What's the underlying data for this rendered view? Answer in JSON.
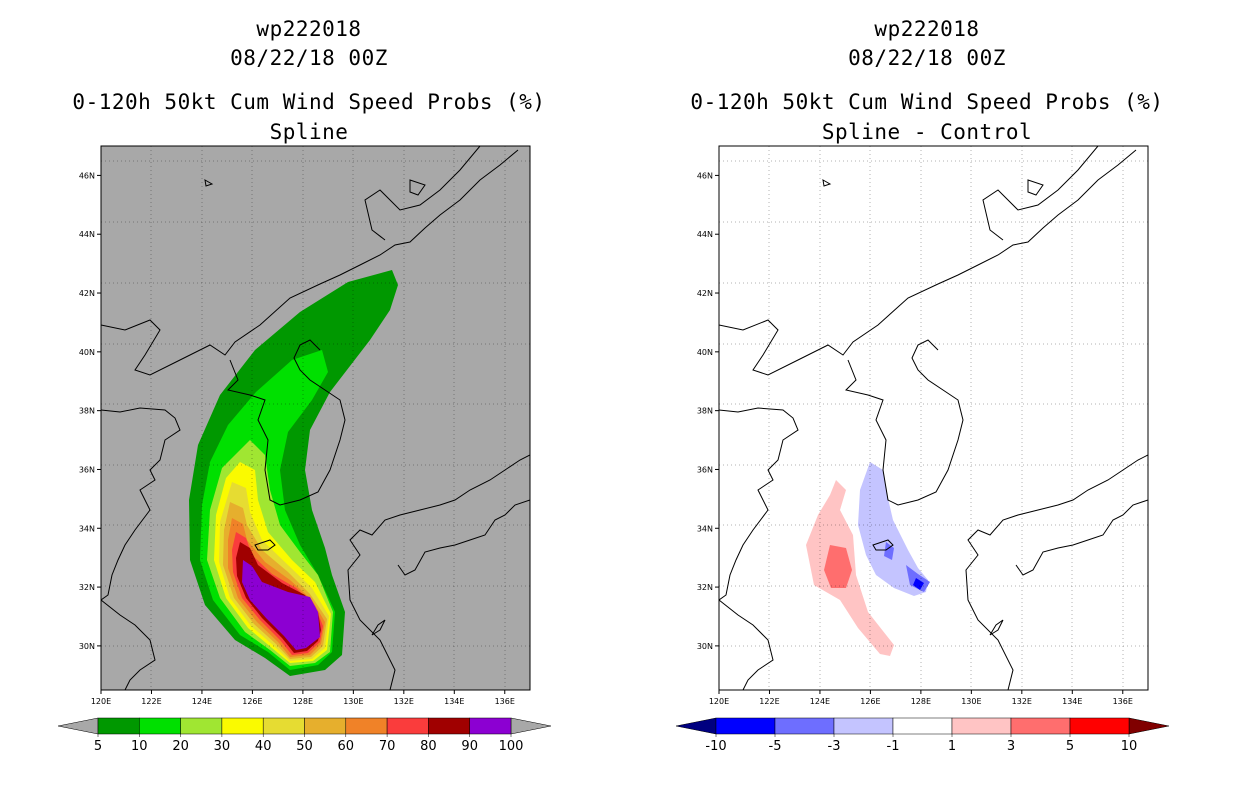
{
  "panels": [
    {
      "id": "left",
      "storm_id": "wp222018",
      "datetime": "08/22/18 00Z",
      "product": "0-120h 50kt Cum Wind Speed Probs (%)",
      "subtitle": "Spline",
      "background_color": "#a8a8a8",
      "colorbar": {
        "labels": [
          "5",
          "10",
          "20",
          "30",
          "40",
          "50",
          "60",
          "70",
          "80",
          "90",
          "100"
        ],
        "colors": [
          "#009800",
          "#00e000",
          "#a0e632",
          "#fafa00",
          "#e6dc32",
          "#e6af2d",
          "#f08228",
          "#fa3c3c",
          "#a00000",
          "#8c00d2"
        ],
        "end_arrow_colors": [
          "#a8a8a8",
          "#a8a8a8"
        ]
      }
    },
    {
      "id": "right",
      "storm_id": "wp222018",
      "datetime": "08/22/18 00Z",
      "product": "0-120h 50kt Cum Wind Speed Probs (%)",
      "subtitle": "Spline - Control",
      "background_color": "#ffffff",
      "colorbar": {
        "labels": [
          "-10",
          "-5",
          "-3",
          "-1",
          "1",
          "3",
          "5",
          "10"
        ],
        "colors": [
          "#0000ff",
          "#6e6eff",
          "#c4c4ff",
          "#ffffff",
          "#ffc4c4",
          "#ff6e6e",
          "#ff0000"
        ],
        "end_arrow_colors": [
          "#000080",
          "#800000"
        ]
      }
    }
  ],
  "map": {
    "lon_range": [
      120,
      137
    ],
    "lat_range": [
      28.5,
      47
    ],
    "lon_ticks": [
      "120E",
      "122E",
      "124E",
      "126E",
      "128E",
      "130E",
      "132E",
      "134E",
      "136E"
    ],
    "lat_ticks": [
      "30N",
      "32N",
      "34N",
      "36N",
      "38N",
      "40N",
      "42N",
      "44N",
      "46N"
    ]
  }
}
